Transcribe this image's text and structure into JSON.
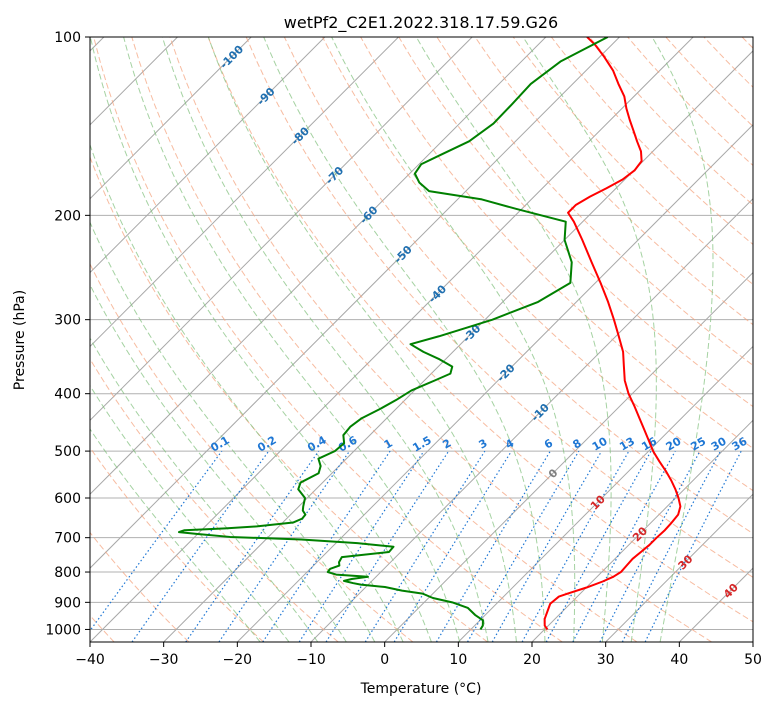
{
  "chart_data": {
    "type": "line",
    "title": "wetPf2_C2E1.2022.318.17.59.G26",
    "xlabel": "Temperature (°C)",
    "ylabel": "Pressure (hPa)",
    "xlim": [
      -40,
      50
    ],
    "ylim": [
      1050,
      100
    ],
    "y_scale": "log",
    "grid": true,
    "x_ticks": [
      -40,
      -30,
      -20,
      -10,
      0,
      10,
      20,
      30,
      40,
      50
    ],
    "y_ticks": [
      100,
      200,
      300,
      400,
      500,
      600,
      700,
      800,
      900,
      1000
    ],
    "skew": "skew-T log-P",
    "colors": {
      "temperature": "#ff0000",
      "dewpoint": "#008000",
      "dry_adiabat": "#f4a582",
      "moist_adiabat": "#7fbf7b",
      "mixing_ratio": "#1f77d4",
      "isotherm_label_blue": "#1f6fb0",
      "isotherm_label_red": "#d62728",
      "isotherm_label_zero": "#808080"
    },
    "series": [
      {
        "name": "",
        "role": "temperature",
        "p": [
          1000,
          985,
          960,
          930,
          905,
          880,
          870,
          850,
          830,
          815,
          800,
          780,
          760,
          740,
          720,
          700,
          680,
          660,
          640,
          620,
          600,
          580,
          560,
          540,
          520,
          500,
          480,
          460,
          440,
          420,
          400,
          380,
          360,
          340,
          320,
          300,
          280,
          260,
          240,
          220,
          205,
          198,
          192,
          186,
          180,
          174,
          168,
          162,
          156,
          150,
          144,
          138,
          132,
          126,
          120,
          114,
          108,
          103,
          100
        ],
        "t": [
          20.4,
          19.5,
          18.6,
          17.9,
          17.3,
          17.5,
          18.3,
          20.0,
          21.4,
          22.2,
          22.6,
          22.5,
          22.4,
          22.6,
          22.8,
          22.8,
          22.9,
          22.8,
          22.6,
          21.8,
          20.4,
          18.8,
          17.0,
          15.0,
          12.8,
          10.6,
          8.6,
          6.5,
          4.3,
          2.0,
          -0.5,
          -2.8,
          -4.8,
          -6.9,
          -9.6,
          -12.5,
          -15.7,
          -19.3,
          -23.3,
          -27.6,
          -31.2,
          -33.2,
          -33.2,
          -32.4,
          -31.3,
          -30.3,
          -29.9,
          -30.2,
          -31.6,
          -33.5,
          -35.4,
          -37.4,
          -39.4,
          -41.3,
          -43.8,
          -46.3,
          -49.4,
          -52.3,
          -54.4
        ]
      },
      {
        "name": "",
        "role": "dewpoint",
        "p": [
          1000,
          985,
          965,
          945,
          920,
          900,
          885,
          870,
          860,
          848,
          840,
          835,
          828,
          822,
          815,
          808,
          800,
          790,
          780,
          770,
          755,
          740,
          725,
          715,
          705,
          698,
          690,
          685,
          680,
          675,
          670,
          660,
          650,
          640,
          630,
          620,
          600,
          580,
          565,
          545,
          530,
          515,
          500,
          485,
          470,
          455,
          440,
          425,
          410,
          395,
          380,
          370,
          360,
          350,
          340,
          330,
          320,
          300,
          280,
          260,
          240,
          220,
          205,
          195,
          188,
          182,
          176,
          170,
          164,
          158,
          150,
          140,
          130,
          120,
          110,
          100
        ],
        "t": [
          11.3,
          11.1,
          10.4,
          8.6,
          6.7,
          3.8,
          0.6,
          -1.4,
          -4.6,
          -7.4,
          -11.0,
          -12.3,
          -13.8,
          -13.0,
          -11.1,
          -15.7,
          -17.2,
          -17.3,
          -16.5,
          -17.0,
          -17.3,
          -11.6,
          -11.7,
          -17.1,
          -25.2,
          -35.2,
          -40.0,
          -42.8,
          -42.3,
          -37.0,
          -33.0,
          -28.6,
          -27.9,
          -28.0,
          -28.9,
          -29.4,
          -30.3,
          -32.4,
          -33.0,
          -31.8,
          -32.5,
          -33.8,
          -32.6,
          -32.4,
          -33.6,
          -33.8,
          -33.4,
          -32.2,
          -31.2,
          -30.4,
          -28.6,
          -27.4,
          -28.1,
          -30.8,
          -34.0,
          -36.8,
          -34.0,
          -29.0,
          -25.2,
          -23.4,
          -26.0,
          -30.0,
          -32.3,
          -40.8,
          -46.7,
          -55.0,
          -57.5,
          -59.3,
          -59.7,
          -58.3,
          -56.3,
          -55.4,
          -55.5,
          -55.7,
          -54.7,
          -51.6
        ]
      }
    ],
    "isotherm_labels": [
      "-100",
      "-90",
      "-80",
      "-70",
      "-60",
      "-50",
      "-40",
      "-30",
      "-20",
      "-10",
      "0",
      "10",
      "20",
      "30",
      "40"
    ],
    "mixing_ratio_labels": [
      "0.1",
      "0.2",
      "0.4",
      "0.6",
      "1",
      "1.5",
      "2",
      "3",
      "4",
      "6",
      "8",
      "10",
      "13",
      "16",
      "20",
      "25",
      "30",
      "36"
    ]
  }
}
